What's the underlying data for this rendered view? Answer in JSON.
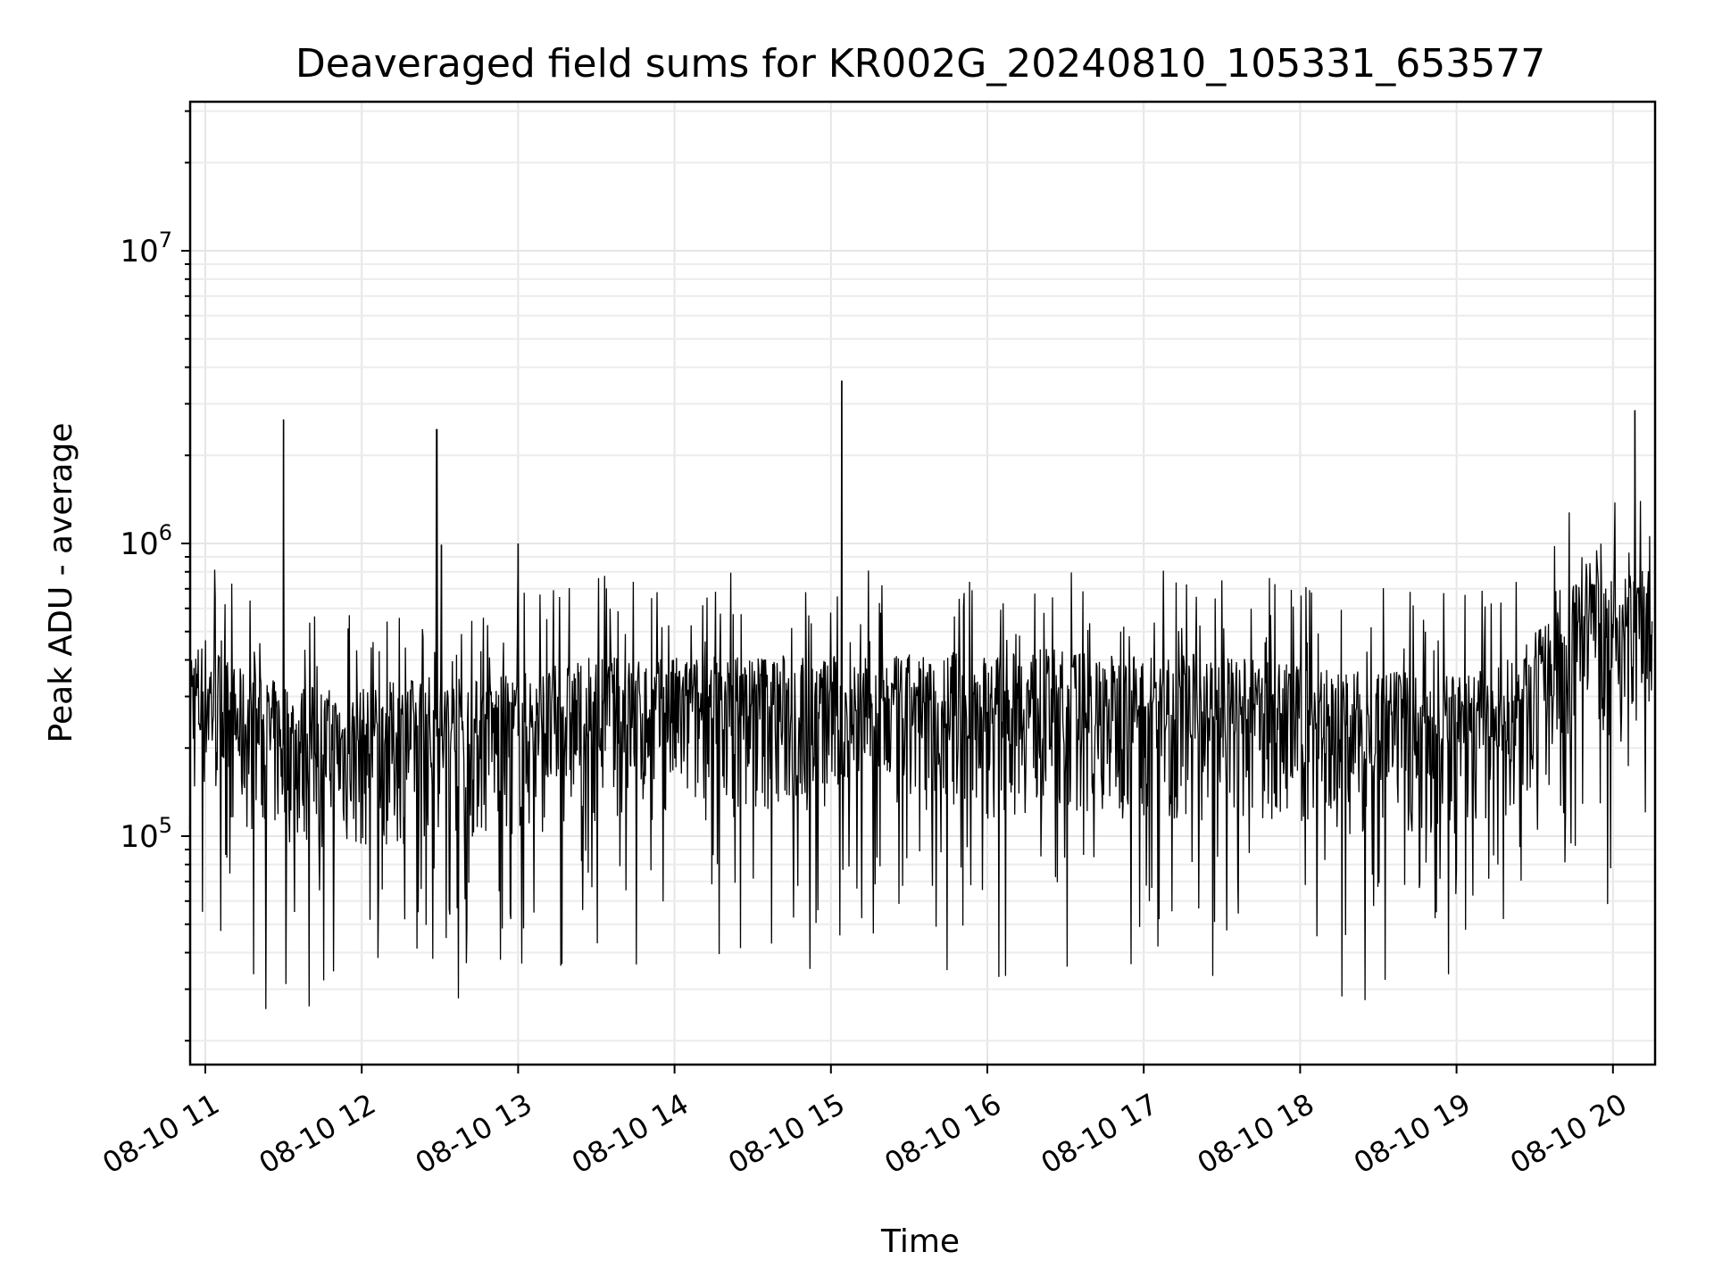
{
  "chart_data": {
    "type": "line",
    "title": "Deaveraged field sums for KR002G_20240810_105331_653577",
    "xlabel": "Time",
    "ylabel": "Peak ADU - average",
    "yscale": "log",
    "xlim": [
      "2024-08-10 10:53",
      "2024-08-10 20:17"
    ],
    "ylim": [
      17000,
      33000000
    ],
    "x_tick_labels": [
      "08-10 11",
      "08-10 12",
      "08-10 13",
      "08-10 14",
      "08-10 15",
      "08-10 16",
      "08-10 17",
      "08-10 18",
      "08-10 19",
      "08-10 20"
    ],
    "x_tick_hours": [
      11,
      12,
      13,
      14,
      15,
      16,
      17,
      18,
      19,
      20
    ],
    "y_ticks": [
      {
        "value": 100000,
        "base": "10",
        "exp": "5"
      },
      {
        "value": 1000000,
        "base": "10",
        "exp": "6"
      },
      {
        "value": 10000000,
        "base": "10",
        "exp": "7"
      }
    ],
    "grid": true,
    "line_color": "#000000",
    "series": [
      {
        "x_hours": [
          10.9,
          10.95,
          11.0,
          11.05,
          11.1,
          11.15,
          11.2,
          11.3,
          11.4,
          11.5,
          11.6,
          11.7,
          11.8,
          11.9,
          12.0,
          12.1,
          12.2,
          12.3,
          12.4,
          12.5,
          12.6,
          12.7,
          12.8,
          12.9,
          13.0,
          13.1,
          13.2,
          13.3,
          13.4,
          13.5,
          13.6,
          13.7,
          13.8,
          13.9,
          14.0,
          14.1,
          14.2,
          14.3,
          14.4,
          14.5,
          14.6,
          14.7,
          14.8,
          14.9,
          15.0,
          15.1,
          15.2,
          15.3,
          15.4,
          15.5,
          15.6,
          15.7,
          15.8,
          15.9,
          16.0,
          16.1,
          16.2,
          16.3,
          16.4,
          16.5,
          16.6,
          16.7,
          16.8,
          16.9,
          17.0,
          17.1,
          17.2,
          17.3,
          17.4,
          17.5,
          17.6,
          17.7,
          17.8,
          17.9,
          18.0,
          18.1,
          18.2,
          18.3,
          18.4,
          18.5,
          18.6,
          18.7,
          18.8,
          18.9,
          19.0,
          19.1,
          19.2,
          19.3,
          19.4,
          19.5,
          19.6,
          19.7,
          19.8,
          19.9,
          20.0,
          20.1,
          20.2,
          20.25
        ],
        "median": [
          300000,
          280000,
          300000,
          280000,
          260000,
          240000,
          230000,
          220000,
          210000,
          205000,
          200000,
          200000,
          195000,
          190000,
          195000,
          200000,
          205000,
          210000,
          215000,
          220000,
          215000,
          210000,
          210000,
          215000,
          220000,
          225000,
          230000,
          240000,
          245000,
          250000,
          250000,
          250000,
          245000,
          245000,
          250000,
          250000,
          250000,
          255000,
          255000,
          260000,
          260000,
          255000,
          255000,
          250000,
          250000,
          255000,
          255000,
          250000,
          250000,
          255000,
          255000,
          255000,
          260000,
          260000,
          255000,
          255000,
          260000,
          265000,
          265000,
          265000,
          260000,
          255000,
          255000,
          255000,
          255000,
          255000,
          255000,
          255000,
          250000,
          250000,
          245000,
          245000,
          240000,
          240000,
          235000,
          230000,
          230000,
          225000,
          220000,
          220000,
          220000,
          225000,
          220000,
          215000,
          220000,
          225000,
          230000,
          240000,
          260000,
          300000,
          330000,
          380000,
          560000,
          520000,
          450000,
          480000,
          520000,
          580000
        ],
        "spikes": [
          {
            "x_hour": 11.5,
            "value": 2650000
          },
          {
            "x_hour": 12.48,
            "value": 2450000
          },
          {
            "x_hour": 12.51,
            "value": 990000
          },
          {
            "x_hour": 13.0,
            "value": 1000000
          },
          {
            "x_hour": 15.07,
            "value": 3600000
          },
          {
            "x_hour": 20.14,
            "value": 2850000
          }
        ]
      }
    ]
  }
}
